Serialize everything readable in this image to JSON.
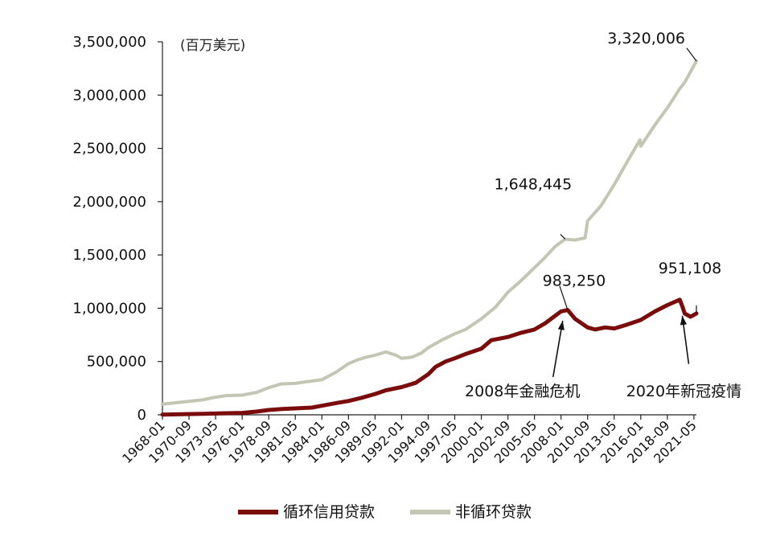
{
  "chart_data": {
    "type": "line",
    "unit_label": "(百万美元)",
    "ylim": [
      0,
      3500000
    ],
    "y_ticks": [
      0,
      500000,
      1000000,
      1500000,
      2000000,
      2500000,
      3000000,
      3500000
    ],
    "y_tick_labels": [
      "0",
      "500,000",
      "1,000,000",
      "1,500,000",
      "2,000,000",
      "2,500,000",
      "3,000,000",
      "3,500,000"
    ],
    "x_tick_labels": [
      "1968-01",
      "1970-09",
      "1973-05",
      "1976-01",
      "1978-09",
      "1981-05",
      "1984-01",
      "1986-09",
      "1989-05",
      "1992-01",
      "1994-09",
      "1997-05",
      "2000-01",
      "2002-09",
      "2005-05",
      "2008-01",
      "2010-09",
      "2013-05",
      "2016-01",
      "2018-09",
      "2021-05"
    ],
    "x_range": [
      "1968-01",
      "2021-08"
    ],
    "series": [
      {
        "name": "循环信用贷款",
        "color": "#7a0c0c",
        "points": [
          [
            "1968-01",
            2000
          ],
          [
            "1970-01",
            5000
          ],
          [
            "1972-01",
            9000
          ],
          [
            "1974-01",
            14000
          ],
          [
            "1976-01",
            18000
          ],
          [
            "1977-06",
            30000
          ],
          [
            "1978-09",
            45000
          ],
          [
            "1980-01",
            55000
          ],
          [
            "1981-05",
            60000
          ],
          [
            "1983-01",
            68000
          ],
          [
            "1984-01",
            85000
          ],
          [
            "1985-06",
            110000
          ],
          [
            "1986-09",
            130000
          ],
          [
            "1988-01",
            160000
          ],
          [
            "1989-05",
            195000
          ],
          [
            "1990-06",
            230000
          ],
          [
            "1992-01",
            260000
          ],
          [
            "1993-06",
            300000
          ],
          [
            "1994-09",
            380000
          ],
          [
            "1995-06",
            450000
          ],
          [
            "1996-06",
            500000
          ],
          [
            "1997-05",
            530000
          ],
          [
            "1998-06",
            570000
          ],
          [
            "2000-01",
            620000
          ],
          [
            "2001-01",
            700000
          ],
          [
            "2002-09",
            730000
          ],
          [
            "2004-01",
            770000
          ],
          [
            "2005-05",
            800000
          ],
          [
            "2006-06",
            860000
          ],
          [
            "2007-06",
            930000
          ],
          [
            "2008-01",
            970000
          ],
          [
            "2008-09",
            983250
          ],
          [
            "2009-06",
            900000
          ],
          [
            "2010-09",
            820000
          ],
          [
            "2011-06",
            800000
          ],
          [
            "2012-06",
            820000
          ],
          [
            "2013-05",
            810000
          ],
          [
            "2014-06",
            840000
          ],
          [
            "2016-01",
            890000
          ],
          [
            "2017-06",
            970000
          ],
          [
            "2018-09",
            1030000
          ],
          [
            "2019-12",
            1080000
          ],
          [
            "2020-03",
            1020000
          ],
          [
            "2020-06",
            950000
          ],
          [
            "2021-01",
            920000
          ],
          [
            "2021-08",
            951108
          ]
        ]
      },
      {
        "name": "非循环贷款",
        "color": "#c4c6b4",
        "points": [
          [
            "1968-01",
            100000
          ],
          [
            "1970-01",
            120000
          ],
          [
            "1972-01",
            140000
          ],
          [
            "1973-05",
            165000
          ],
          [
            "1974-06",
            180000
          ],
          [
            "1976-01",
            185000
          ],
          [
            "1977-06",
            210000
          ],
          [
            "1978-09",
            255000
          ],
          [
            "1979-12",
            290000
          ],
          [
            "1981-05",
            295000
          ],
          [
            "1982-06",
            310000
          ],
          [
            "1984-01",
            330000
          ],
          [
            "1985-06",
            400000
          ],
          [
            "1986-09",
            480000
          ],
          [
            "1987-06",
            510000
          ],
          [
            "1988-06",
            540000
          ],
          [
            "1989-05",
            560000
          ],
          [
            "1990-06",
            590000
          ],
          [
            "1991-06",
            560000
          ],
          [
            "1992-01",
            530000
          ],
          [
            "1993-01",
            540000
          ],
          [
            "1994-01",
            580000
          ],
          [
            "1994-09",
            630000
          ],
          [
            "1996-01",
            700000
          ],
          [
            "1997-05",
            760000
          ],
          [
            "1998-06",
            800000
          ],
          [
            "2000-01",
            900000
          ],
          [
            "2001-06",
            1010000
          ],
          [
            "2002-09",
            1150000
          ],
          [
            "2004-01",
            1260000
          ],
          [
            "2005-05",
            1380000
          ],
          [
            "2006-06",
            1480000
          ],
          [
            "2007-06",
            1580000
          ],
          [
            "2008-06",
            1648445
          ],
          [
            "2009-06",
            1640000
          ],
          [
            "2010-06",
            1660000
          ],
          [
            "2010-09",
            1820000
          ],
          [
            "2012-01",
            1960000
          ],
          [
            "2013-05",
            2160000
          ],
          [
            "2014-09",
            2380000
          ],
          [
            "2015-12",
            2580000
          ],
          [
            "2016-01",
            2520000
          ],
          [
            "2017-06",
            2720000
          ],
          [
            "2018-09",
            2880000
          ],
          [
            "2019-12",
            3060000
          ],
          [
            "2020-06",
            3120000
          ],
          [
            "2021-01",
            3220000
          ],
          [
            "2021-08",
            3320006
          ]
        ]
      }
    ],
    "annotations": [
      {
        "text": "3,320,006",
        "series": 1,
        "date": "2021-08"
      },
      {
        "text": "1,648,445",
        "series": 1,
        "date": "2008-06"
      },
      {
        "text": "983,250",
        "series": 0,
        "date": "2008-09"
      },
      {
        "text": "951,108",
        "series": 0,
        "date": "2021-08"
      },
      {
        "text": "2008年金融危机",
        "series": 0,
        "date": "2008-03"
      },
      {
        "text": "2020年新冠疫情",
        "series": 0,
        "date": "2020-03"
      }
    ],
    "legend_position": "bottom",
    "grid": false
  }
}
